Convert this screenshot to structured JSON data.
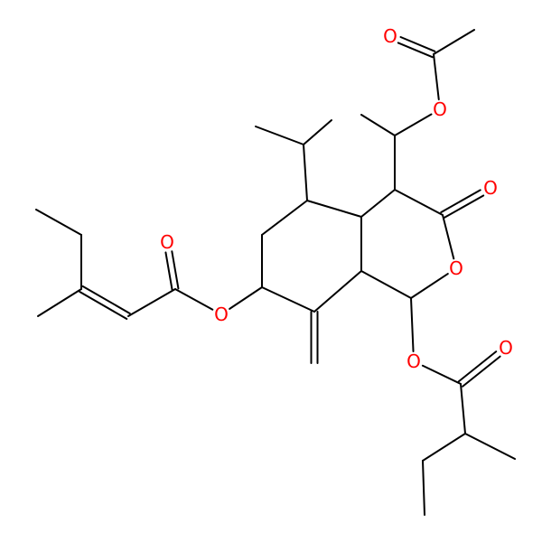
{
  "atom_labels": [
    "O",
    "O",
    "O",
    "O",
    "O",
    "O",
    "O",
    "O"
  ]
}
